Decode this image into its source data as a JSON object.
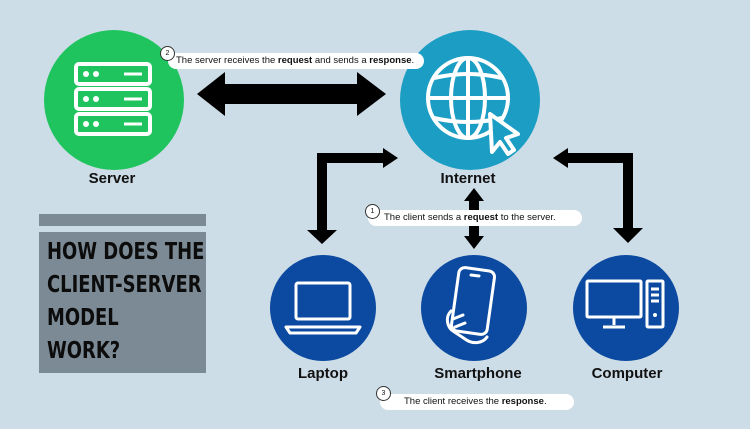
{
  "nodes": {
    "server": "Server",
    "internet": "Internet",
    "laptop": "Laptop",
    "smartphone": "Smartphone",
    "computer": "Computer"
  },
  "title_lines": [
    "HOW DOES THE",
    "CLIENT-SERVER",
    "MODEL",
    "WORK?"
  ],
  "steps": [
    {
      "number": "2",
      "pre": "The server receives the ",
      "b1": "request",
      "mid": " and sends a ",
      "b2": "response",
      "post": "."
    },
    {
      "number": "1",
      "pre": "The client sends a ",
      "b1": "request",
      "post": " to the server."
    },
    {
      "number": "3",
      "pre": "The client receives the ",
      "b1": "response",
      "post": "."
    }
  ],
  "colors": {
    "background": "#cddde7",
    "server": "#1fc45e",
    "internet": "#1b9dc4",
    "client": "#0b4aa0",
    "title_box": "#7b8a94"
  }
}
